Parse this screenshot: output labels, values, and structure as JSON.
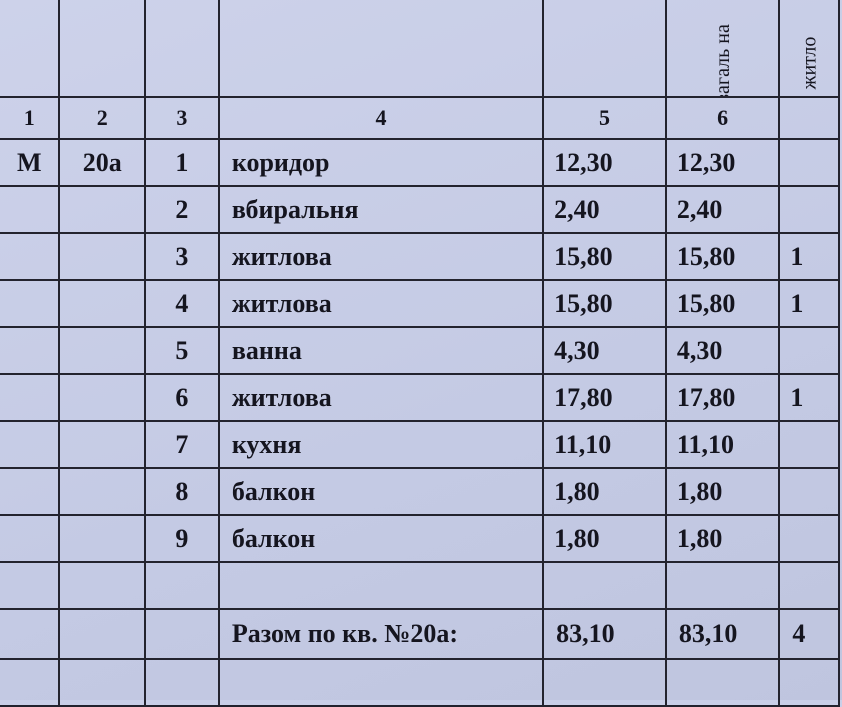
{
  "table": {
    "header_rotated": {
      "col6": "загаль на",
      "col7": "житло"
    },
    "column_numbers": [
      "1",
      "2",
      "3",
      "4",
      "5",
      "6"
    ],
    "rows": [
      {
        "section": "М",
        "apartment": "20а",
        "no": "1",
        "room": "коридор",
        "area5": "12,30",
        "area6": "12,30",
        "area7": ""
      },
      {
        "section": "",
        "apartment": "",
        "no": "2",
        "room": "вбиральня",
        "area5": "2,40",
        "area6": "2,40",
        "area7": ""
      },
      {
        "section": "",
        "apartment": "",
        "no": "3",
        "room": "житлова",
        "area5": "15,80",
        "area6": "15,80",
        "area7": "1"
      },
      {
        "section": "",
        "apartment": "",
        "no": "4",
        "room": "житлова",
        "area5": "15,80",
        "area6": "15,80",
        "area7": "1"
      },
      {
        "section": "",
        "apartment": "",
        "no": "5",
        "room": "ванна",
        "area5": "4,30",
        "area6": "4,30",
        "area7": ""
      },
      {
        "section": "",
        "apartment": "",
        "no": "6",
        "room": "житлова",
        "area5": "17,80",
        "area6": "17,80",
        "area7": "1"
      },
      {
        "section": "",
        "apartment": "",
        "no": "7",
        "room": "кухня",
        "area5": "11,10",
        "area6": "11,10",
        "area7": ""
      },
      {
        "section": "",
        "apartment": "",
        "no": "8",
        "room": "балкон",
        "area5": "1,80",
        "area6": "1,80",
        "area7": ""
      },
      {
        "section": "",
        "apartment": "",
        "no": "9",
        "room": "балкон",
        "area5": "1,80",
        "area6": "1,80",
        "area7": ""
      }
    ],
    "total": {
      "label": "Разом по кв. №20а:",
      "area5": "83,10",
      "area6": "83,10",
      "area7": "4"
    }
  }
}
